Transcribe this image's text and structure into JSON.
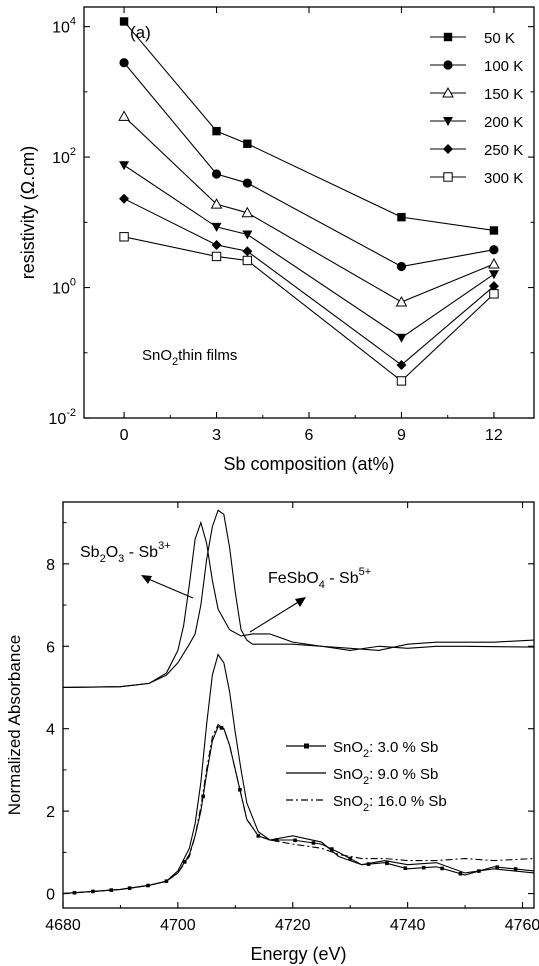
{
  "chart_data": [
    {
      "type": "line",
      "panel_label": "(a)",
      "annotation": "SnO2thin films",
      "annotation_parts": {
        "a": "SnO",
        "sub": "2",
        "b": "thin films"
      },
      "xlabel": "Sb composition (at%)",
      "ylabel": "resistivity (Ω.cm)",
      "xlim": [
        -1.3,
        13.3
      ],
      "ylim": [
        0.01,
        20000
      ],
      "yscale": "log",
      "x_ticks": [
        0,
        3,
        6,
        9,
        12
      ],
      "x_tick_labels": [
        "0",
        "3",
        "6",
        "9",
        "12"
      ],
      "y_ticks": [
        {
          "value": 0.01,
          "base": "10",
          "exp": "-2"
        },
        {
          "value": 1,
          "base": "10",
          "exp": "0"
        },
        {
          "value": 100,
          "base": "10",
          "exp": "2"
        },
        {
          "value": 10000,
          "base": "10",
          "exp": "4"
        }
      ],
      "legend_position": "top-right",
      "x": [
        0,
        3,
        4,
        9,
        12
      ],
      "series": [
        {
          "name": "50 K",
          "marker": "square-filled",
          "values": [
            12000,
            250,
            160,
            12,
            7.5
          ]
        },
        {
          "name": "100 K",
          "marker": "circle-filled",
          "values": [
            2800,
            55,
            40,
            2.1,
            3.8
          ]
        },
        {
          "name": "150 K",
          "marker": "triangle-open",
          "values": [
            420,
            19,
            14,
            0.6,
            2.3
          ]
        },
        {
          "name": "200 K",
          "marker": "triangle-down",
          "values": [
            75,
            8.5,
            6.5,
            0.17,
            1.6
          ]
        },
        {
          "name": "250 K",
          "marker": "diamond-filled",
          "values": [
            23,
            4.5,
            3.6,
            0.065,
            1.05
          ]
        },
        {
          "name": "300 K",
          "marker": "square-open",
          "values": [
            6,
            3,
            2.6,
            0.037,
            0.8
          ]
        }
      ]
    },
    {
      "type": "line",
      "xlabel": "Energy (eV)",
      "ylabel": "Normalized Absorbance",
      "xlim": [
        4680,
        4762
      ],
      "ylim": [
        -0.35,
        9.5
      ],
      "x_ticks": [
        4680,
        4700,
        4720,
        4740,
        4760
      ],
      "y_ticks": [
        0,
        2,
        4,
        6,
        8
      ],
      "legend_position": "middle-right",
      "annotations": [
        {
          "base": "Sb",
          "sub": "2",
          "mid": "O",
          "sub2": "3",
          "rest": " - Sb",
          "sup": "3+"
        },
        {
          "base": "FeSbO",
          "sub": "4",
          "mid": "",
          "sub2": "",
          "rest": " - Sb",
          "sup": "5+"
        }
      ],
      "series": [
        {
          "name": "Sb2O3 - Sb3+",
          "style": "solid",
          "x": [
            4680,
            4690,
            4695,
            4698,
            4700,
            4701,
            4702,
            4703,
            4704,
            4705,
            4706,
            4707,
            4709,
            4711,
            4713,
            4716,
            4720,
            4725,
            4730,
            4735,
            4740,
            4745,
            4750,
            4755,
            4762
          ],
          "values": [
            5,
            5.02,
            5.1,
            5.35,
            5.9,
            6.5,
            7.5,
            8.6,
            9.0,
            8.5,
            7.6,
            6.9,
            6.4,
            6.25,
            6.3,
            6.3,
            6.1,
            6.0,
            5.95,
            5.9,
            6.05,
            6.1,
            6.1,
            6.1,
            6.15
          ]
        },
        {
          "name": "FeSbO4 - Sb5+",
          "style": "solid",
          "x": [
            4680,
            4690,
            4695,
            4698,
            4700,
            4702,
            4703,
            4704,
            4705,
            4706,
            4707,
            4708,
            4709,
            4710,
            4711,
            4712,
            4713,
            4715,
            4718,
            4720,
            4725,
            4730,
            4735,
            4740,
            4745,
            4750,
            4762
          ],
          "values": [
            5,
            5.02,
            5.1,
            5.3,
            5.6,
            6.05,
            6.3,
            7.0,
            8.1,
            8.9,
            9.3,
            9.2,
            8.4,
            7.3,
            6.4,
            6.15,
            6.05,
            6.05,
            6.05,
            6.05,
            6.0,
            5.9,
            6.0,
            5.95,
            6.0,
            6.0,
            5.98
          ]
        },
        {
          "name": "SnO2: 3.0 % Sb",
          "legend": {
            "a": "SnO",
            "sub": "2",
            "b": ": 3.0 % Sb"
          },
          "style": "solid-square-markers",
          "x": [
            4680,
            4690,
            4695,
            4698,
            4700,
            4702,
            4703,
            4704,
            4705,
            4706,
            4707,
            4708,
            4709,
            4710,
            4711,
            4712,
            4714,
            4716,
            4720,
            4725,
            4728,
            4732,
            4736,
            4740,
            4745,
            4750,
            4755,
            4762
          ],
          "values": [
            0,
            0.1,
            0.2,
            0.3,
            0.5,
            0.95,
            1.4,
            2.0,
            2.9,
            3.7,
            4.05,
            4.0,
            3.6,
            3.0,
            2.4,
            1.8,
            1.4,
            1.3,
            1.3,
            1.2,
            1.0,
            0.7,
            0.75,
            0.6,
            0.65,
            0.45,
            0.65,
            0.55
          ]
        },
        {
          "name": "SnO2: 9.0 % Sb",
          "legend": {
            "a": "SnO",
            "sub": "2",
            "b": ": 9.0 % Sb"
          },
          "style": "solid",
          "x": [
            4680,
            4690,
            4695,
            4698,
            4700,
            4702,
            4703,
            4704,
            4705,
            4706,
            4707,
            4708,
            4709,
            4710,
            4711,
            4712,
            4714,
            4716,
            4720,
            4725,
            4728,
            4732,
            4736,
            4740,
            4745,
            4750,
            4755,
            4762
          ],
          "values": [
            0,
            0.1,
            0.2,
            0.3,
            0.55,
            1.1,
            1.7,
            2.7,
            4.1,
            5.3,
            5.8,
            5.6,
            4.9,
            3.9,
            3.0,
            2.2,
            1.5,
            1.3,
            1.4,
            1.25,
            0.9,
            0.7,
            0.8,
            0.7,
            0.75,
            0.5,
            0.6,
            0.5
          ]
        },
        {
          "name": "SnO2: 16.0 % Sb",
          "legend": {
            "a": "SnO",
            "sub": "2",
            "b": ": 16.0 % Sb"
          },
          "style": "dash-dot",
          "x": [
            4680,
            4690,
            4695,
            4698,
            4700,
            4702,
            4703,
            4704,
            4705,
            4706,
            4707,
            4708,
            4709,
            4710,
            4711,
            4712,
            4714,
            4716,
            4720,
            4725,
            4728,
            4732,
            4736,
            4740,
            4745,
            4750,
            4755,
            4762
          ],
          "values": [
            0,
            0.1,
            0.2,
            0.3,
            0.5,
            0.9,
            1.4,
            2.1,
            3.0,
            3.8,
            4.1,
            4.0,
            3.6,
            3.0,
            2.4,
            1.8,
            1.4,
            1.3,
            1.2,
            1.1,
            0.95,
            0.85,
            0.85,
            0.8,
            0.8,
            0.85,
            0.8,
            0.85
          ]
        }
      ]
    }
  ]
}
